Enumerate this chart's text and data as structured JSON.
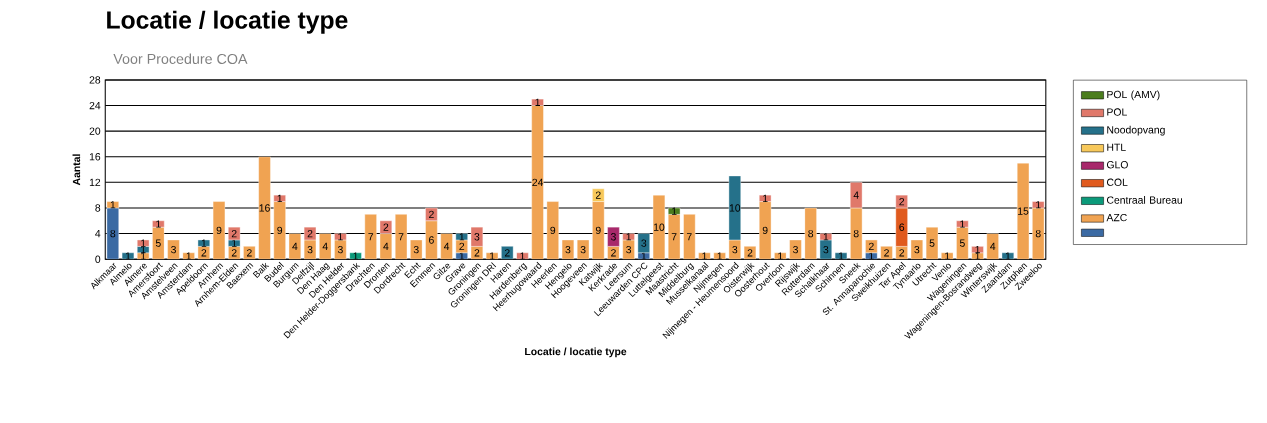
{
  "chart_data": {
    "type": "bar",
    "stacked": true,
    "title": "Locatie / locatie type",
    "subtitle": "Voor Procedure COA",
    "xlabel": "Locatie / locatie type",
    "ylabel": "Aantal",
    "categories": [
      "Alkmaar",
      "Almelo",
      "Almere",
      "Amersfoort",
      "Amstelveen",
      "Amsterdam",
      "Apeldoorn",
      "Arnhem",
      "Arnhem-Elden",
      "Baexem",
      "Balk",
      "Budel",
      "Burgum",
      "Delfzijl",
      "Den Haag",
      "Den Helder",
      "Den Helder-Doggersbank",
      "Drachten",
      "Dronten",
      "Dordrecht",
      "Echt",
      "Emmen",
      "Gilze",
      "Grave",
      "Groningen",
      "Groningen DRI",
      "Haren",
      "Hardenberg",
      "Heerhugowaard",
      "Heerlen",
      "Hengelo",
      "Hoogeveen",
      "Katwijk",
      "Kerkrade",
      "Leersum",
      "Leeuwarden CPC",
      "Luttelgeest",
      "Maastricht",
      "Middelburg",
      "Musselkanaal",
      "Nijmegen",
      "Nijmegen - Heumensoord",
      "Oisterwijk",
      "Oosterhout",
      "Overloon",
      "Rijswijk",
      "Rotterdam",
      "Schalkhaar",
      "Schinnen",
      "Sneek",
      "St. Annaparochie",
      "Sweikhuizen",
      "Ter Apel",
      "Tynaarlo",
      "Utrecht",
      "Venlo",
      "Wageningen",
      "Wageningen-Bosrandweg",
      "Winterswijk",
      "Zaandam",
      "Zutphen",
      "Zweeloo"
    ],
    "series": [
      {
        "color": "#3b6aa3",
        "values": [
          8,
          null,
          null,
          null,
          null,
          null,
          null,
          null,
          null,
          null,
          null,
          null,
          null,
          null,
          null,
          null,
          null,
          null,
          null,
          null,
          null,
          null,
          null,
          1,
          null,
          null,
          null,
          null,
          null,
          null,
          null,
          null,
          null,
          null,
          null,
          1,
          null,
          null,
          null,
          null,
          null,
          null,
          null,
          null,
          null,
          null,
          null,
          null,
          null,
          null,
          1,
          null,
          null,
          null,
          null,
          null,
          null,
          null,
          null,
          null,
          null,
          null
        ]
      },
      {
        "name": "AZC",
        "color": "#f0a352",
        "values": [
          1,
          null,
          1,
          5,
          3,
          1,
          2,
          9,
          2,
          2,
          16,
          9,
          4,
          3,
          4,
          3,
          null,
          7,
          4,
          7,
          3,
          6,
          4,
          2,
          2,
          1,
          null,
          null,
          24,
          9,
          3,
          3,
          9,
          2,
          3,
          null,
          10,
          7,
          7,
          1,
          1,
          3,
          2,
          9,
          1,
          3,
          8,
          null,
          null,
          8,
          2,
          2,
          2,
          3,
          5,
          1,
          5,
          1,
          4,
          null,
          15,
          8
        ]
      },
      {
        "name": "Centraal Bureau",
        "color": "#0b9a7a",
        "values": [
          null,
          null,
          null,
          null,
          null,
          null,
          null,
          null,
          null,
          null,
          null,
          null,
          null,
          null,
          null,
          null,
          1,
          null,
          null,
          null,
          null,
          null,
          null,
          null,
          null,
          null,
          null,
          null,
          null,
          null,
          null,
          null,
          null,
          null,
          null,
          null,
          null,
          null,
          null,
          null,
          null,
          null,
          null,
          null,
          null,
          null,
          null,
          null,
          null,
          null,
          null,
          null,
          null,
          null,
          null,
          null,
          null,
          null,
          null,
          null,
          null,
          null
        ]
      },
      {
        "name": "COL",
        "color": "#e05a1e",
        "values": [
          null,
          null,
          null,
          null,
          null,
          null,
          null,
          null,
          null,
          null,
          null,
          null,
          null,
          null,
          null,
          null,
          null,
          null,
          null,
          null,
          null,
          null,
          null,
          null,
          null,
          null,
          null,
          null,
          null,
          null,
          null,
          null,
          null,
          null,
          null,
          null,
          null,
          null,
          null,
          null,
          null,
          null,
          null,
          null,
          null,
          null,
          null,
          null,
          null,
          null,
          null,
          null,
          6,
          null,
          null,
          null,
          null,
          null,
          null,
          null,
          null,
          null
        ]
      },
      {
        "name": "GLO",
        "color": "#a8296b",
        "values": [
          null,
          null,
          null,
          null,
          null,
          null,
          null,
          null,
          null,
          null,
          null,
          null,
          null,
          null,
          null,
          null,
          null,
          null,
          null,
          null,
          null,
          null,
          null,
          null,
          null,
          null,
          null,
          null,
          null,
          null,
          null,
          null,
          null,
          3,
          null,
          null,
          null,
          null,
          null,
          null,
          null,
          null,
          null,
          null,
          null,
          null,
          null,
          null,
          null,
          null,
          null,
          null,
          null,
          null,
          null,
          null,
          null,
          null,
          null,
          null,
          null,
          null
        ]
      },
      {
        "name": "HTL",
        "color": "#f7c85a",
        "values": [
          null,
          null,
          null,
          null,
          null,
          null,
          null,
          null,
          null,
          null,
          null,
          null,
          null,
          null,
          null,
          null,
          null,
          null,
          null,
          null,
          null,
          null,
          null,
          null,
          null,
          null,
          null,
          null,
          null,
          null,
          null,
          null,
          2,
          null,
          null,
          null,
          null,
          null,
          null,
          null,
          null,
          null,
          null,
          null,
          null,
          null,
          null,
          null,
          null,
          null,
          null,
          null,
          null,
          null,
          null,
          null,
          null,
          null,
          null,
          null,
          null,
          null
        ]
      },
      {
        "name": "Noodopvang",
        "color": "#25718a",
        "values": [
          null,
          1,
          1,
          null,
          null,
          null,
          1,
          null,
          1,
          null,
          null,
          null,
          null,
          null,
          null,
          null,
          null,
          null,
          null,
          null,
          null,
          null,
          null,
          1,
          null,
          null,
          2,
          null,
          null,
          null,
          null,
          null,
          null,
          null,
          null,
          3,
          null,
          null,
          null,
          null,
          null,
          10,
          null,
          null,
          null,
          null,
          null,
          3,
          1,
          null,
          null,
          null,
          null,
          null,
          null,
          null,
          null,
          null,
          null,
          1,
          null,
          null
        ]
      },
      {
        "name": "POL",
        "color": "#e0786a",
        "values": [
          null,
          null,
          1,
          1,
          null,
          null,
          null,
          null,
          2,
          null,
          null,
          1,
          null,
          2,
          null,
          1,
          null,
          null,
          2,
          null,
          null,
          2,
          null,
          null,
          3,
          null,
          null,
          1,
          1,
          null,
          null,
          null,
          null,
          null,
          1,
          null,
          null,
          null,
          null,
          null,
          null,
          null,
          null,
          1,
          null,
          null,
          null,
          1,
          null,
          4,
          null,
          null,
          2,
          null,
          null,
          null,
          1,
          1,
          null,
          null,
          null,
          1
        ]
      },
      {
        "name": "POL (AMV)",
        "color": "#4b7d1e",
        "values": [
          null,
          null,
          null,
          null,
          null,
          null,
          null,
          null,
          null,
          null,
          null,
          null,
          null,
          null,
          null,
          null,
          null,
          null,
          null,
          null,
          null,
          null,
          null,
          null,
          null,
          null,
          null,
          null,
          null,
          null,
          null,
          null,
          null,
          null,
          null,
          null,
          null,
          1,
          null,
          null,
          null,
          null,
          null,
          null,
          null,
          null,
          null,
          null,
          null,
          null,
          null,
          null,
          null,
          null,
          null,
          null,
          null,
          null,
          null,
          null,
          null,
          null
        ]
      }
    ],
    "ylim": [
      0,
      28
    ],
    "yticks": [
      0,
      4,
      8,
      12,
      16,
      20,
      24,
      28
    ],
    "grid": "y",
    "legend": "right",
    "data_labels": true
  }
}
